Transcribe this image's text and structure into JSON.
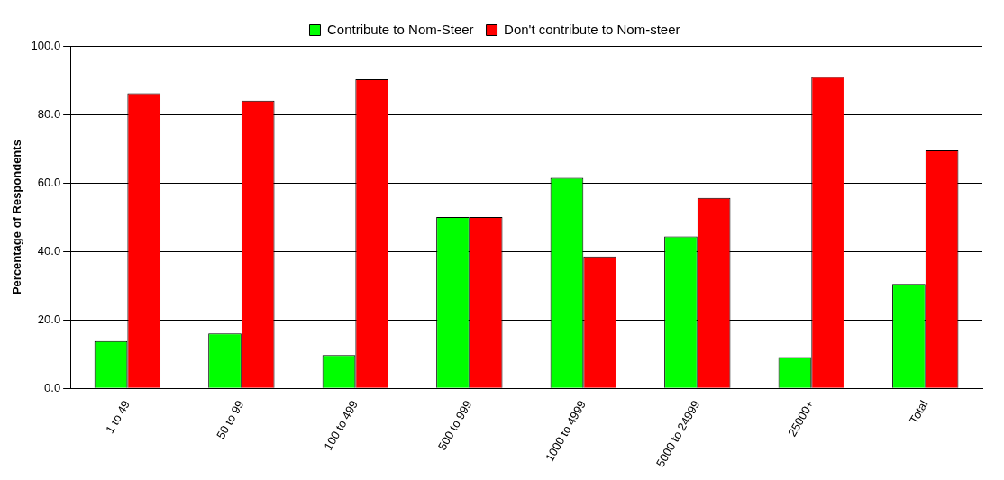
{
  "chart_data": {
    "type": "bar",
    "ylabel": "Percentage of Respondents",
    "categories": [
      "1 to 49",
      "50 to 99",
      "100 to 499",
      "500 to 999",
      "1000 to 4999",
      "5000 to 24999",
      "25000+",
      "Total"
    ],
    "series": [
      {
        "name": "Contribute to Nom-Steer",
        "color": "#00ff00",
        "values": [
          13.8,
          16.0,
          9.7,
          50.0,
          61.5,
          44.4,
          9.1,
          30.5
        ]
      },
      {
        "name": "Don't contribute to Nom-steer",
        "color": "#ff0000",
        "values": [
          86.2,
          84.0,
          90.3,
          50.0,
          38.5,
          55.6,
          90.9,
          69.5
        ]
      }
    ],
    "ylim": [
      0,
      100
    ],
    "yticks": [
      {
        "value": 0,
        "label": "0.0"
      },
      {
        "value": 20,
        "label": "20.0"
      },
      {
        "value": 40,
        "label": "40.0"
      },
      {
        "value": 60,
        "label": "60.0"
      },
      {
        "value": 80,
        "label": "80.0"
      },
      {
        "value": 100,
        "label": "100.0"
      }
    ],
    "grid": "y",
    "legend": "top"
  }
}
